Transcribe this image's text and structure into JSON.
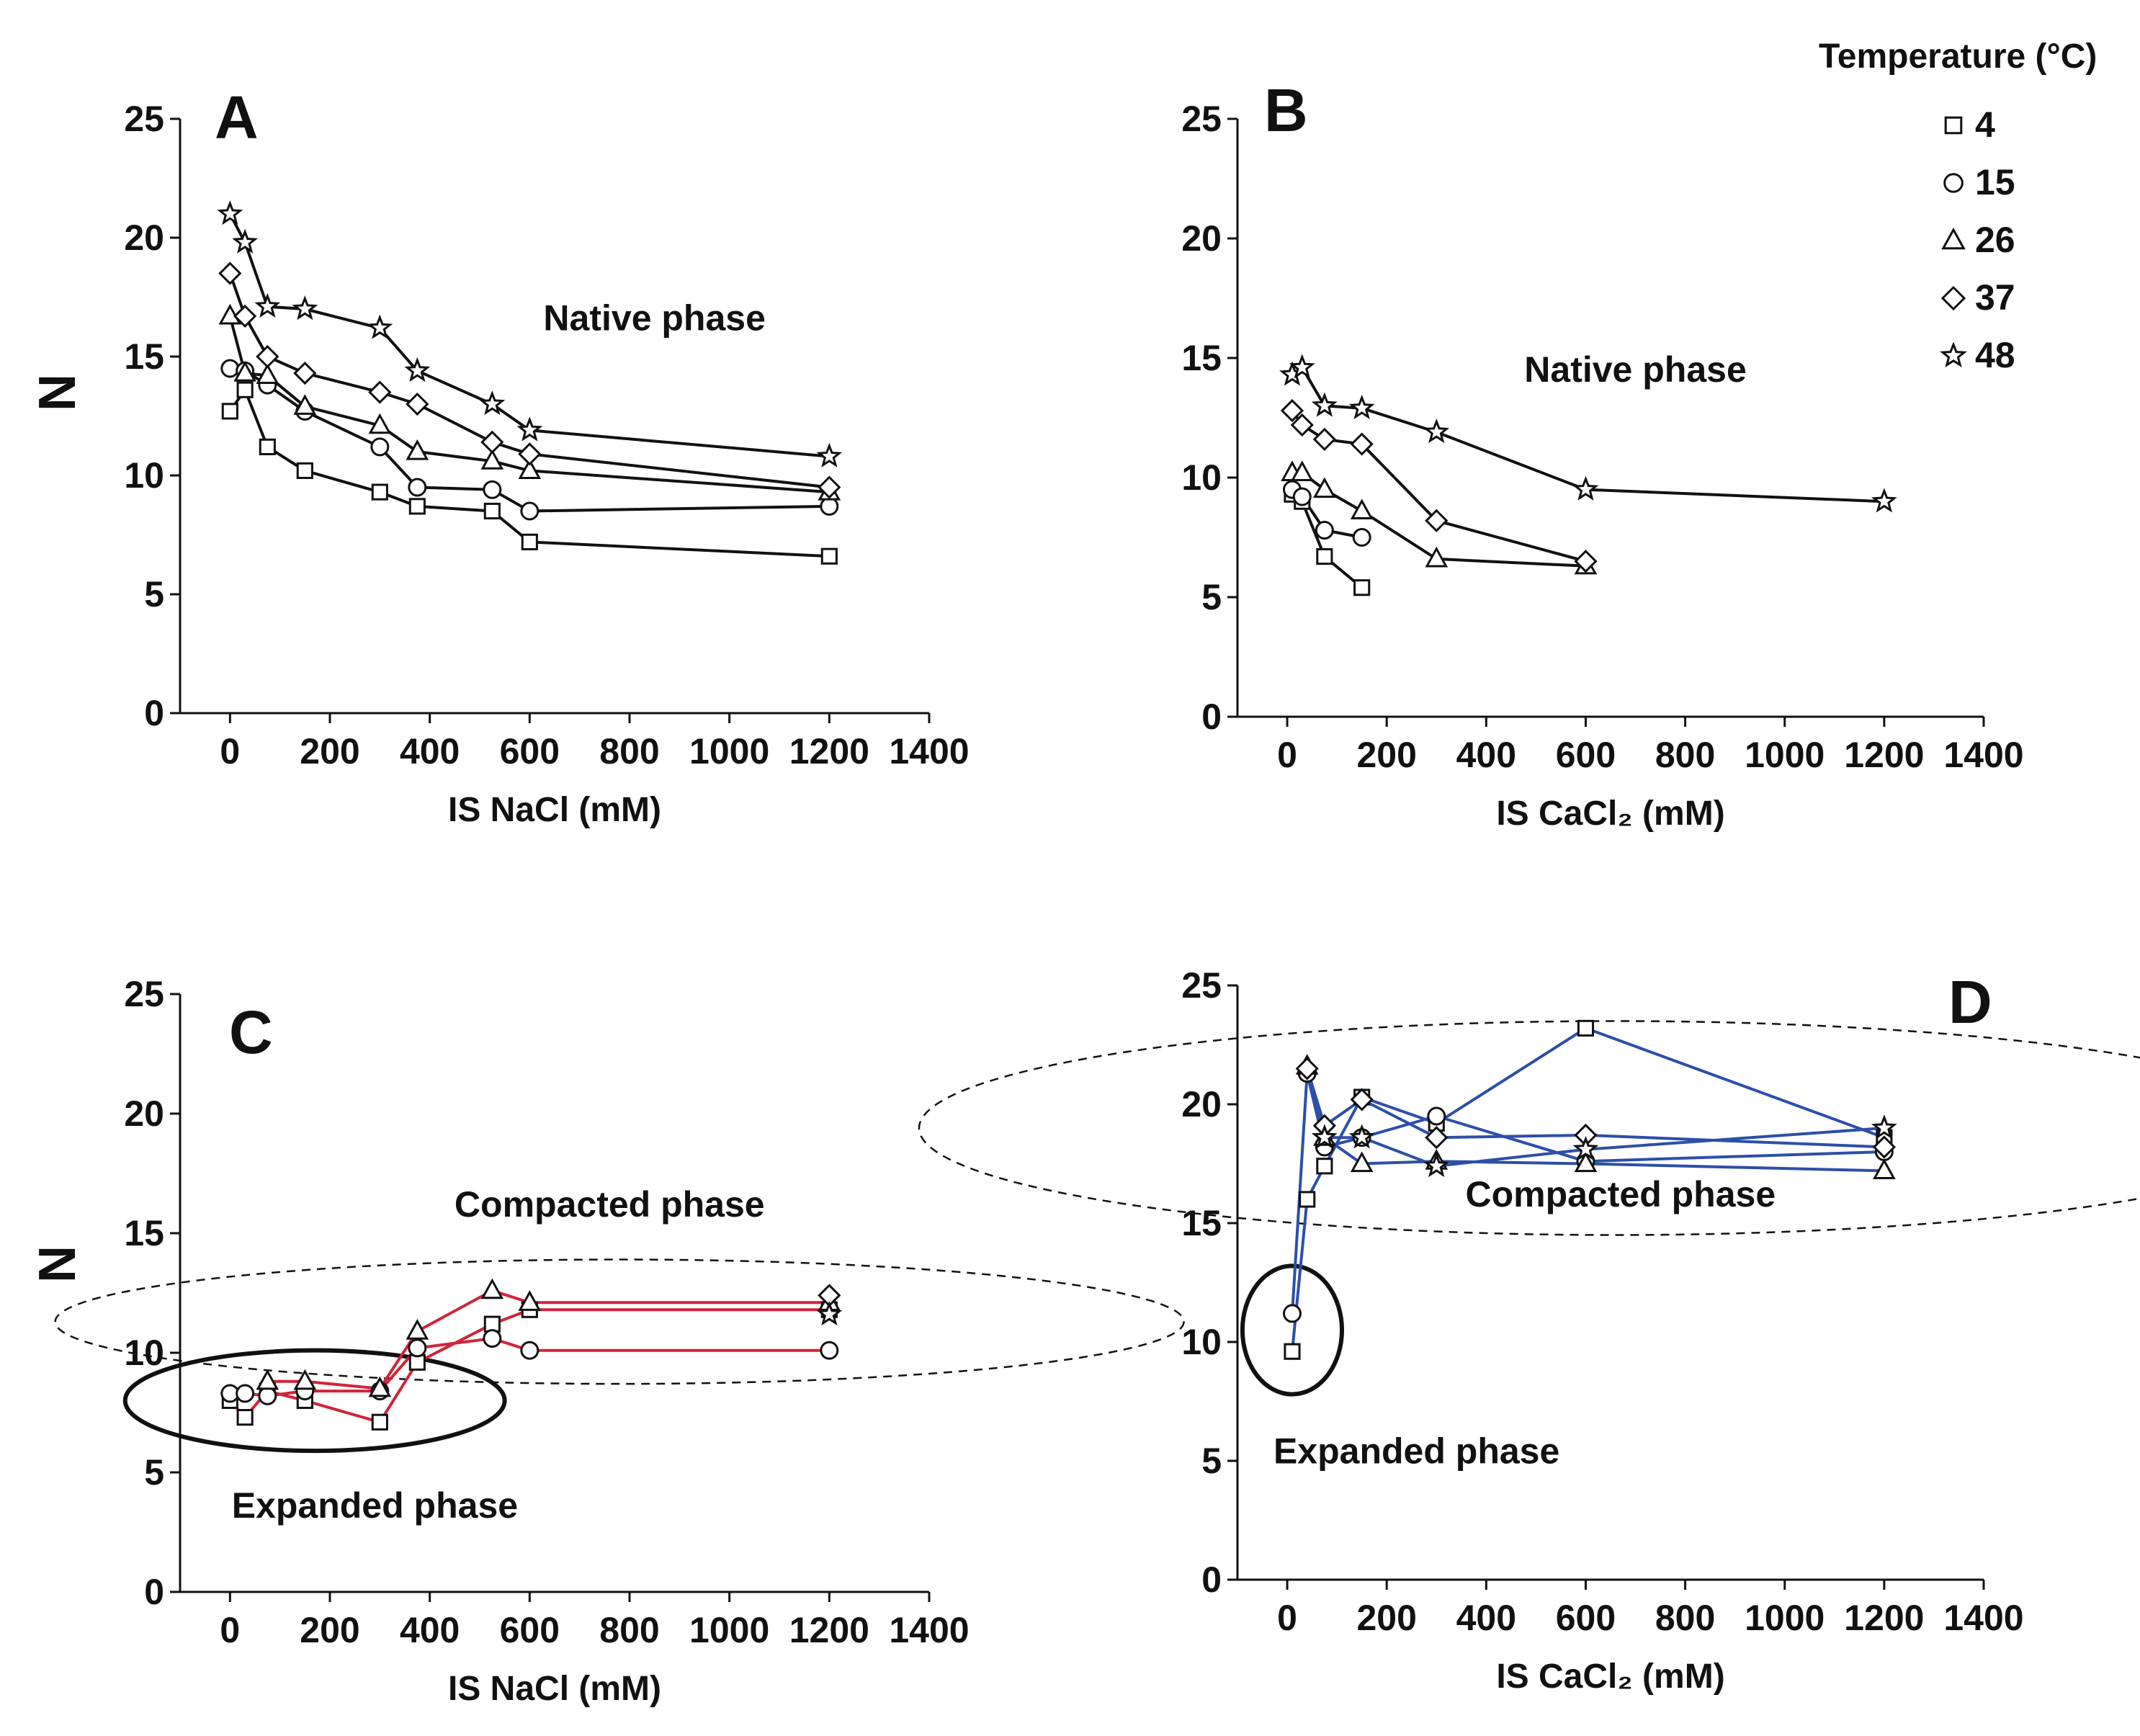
{
  "figure": {
    "legend": {
      "title": "Temperature (°C)",
      "entries": [
        {
          "label": "4",
          "marker": "square"
        },
        {
          "label": "15",
          "marker": "circle"
        },
        {
          "label": "26",
          "marker": "triangle"
        },
        {
          "label": "37",
          "marker": "diamond"
        },
        {
          "label": "48",
          "marker": "star"
        }
      ]
    },
    "colors": {
      "black": "#111111",
      "red": "#d0243a",
      "blue": "#2c4fa8"
    }
  },
  "chart_data": [
    {
      "panel": "A",
      "type": "line",
      "xlabel": "IS NaCl (mM)",
      "ylabel": "N",
      "xlim": [
        -100,
        1400
      ],
      "ylim": [
        0,
        25
      ],
      "xticks": [
        0,
        200,
        400,
        600,
        800,
        1000,
        1200,
        1400
      ],
      "yticks": [
        0,
        5,
        10,
        15,
        20,
        25
      ],
      "line_color": "#111111",
      "annotations": [
        {
          "text": "Native phase",
          "at": [
            850,
            16.1
          ]
        }
      ],
      "series": [
        {
          "name": "4",
          "marker": "square",
          "points": [
            [
              0,
              12.7
            ],
            [
              30,
              13.6
            ],
            [
              75,
              11.2
            ],
            [
              150,
              10.2
            ],
            [
              300,
              9.3
            ],
            [
              375,
              8.7
            ],
            [
              525,
              8.5
            ],
            [
              600,
              7.2
            ],
            [
              1200,
              6.6
            ]
          ]
        },
        {
          "name": "15",
          "marker": "circle",
          "points": [
            [
              0,
              14.5
            ],
            [
              30,
              14.4
            ],
            [
              75,
              13.8
            ],
            [
              150,
              12.7
            ],
            [
              300,
              11.2
            ],
            [
              375,
              9.5
            ],
            [
              525,
              9.4
            ],
            [
              600,
              8.5
            ],
            [
              1200,
              8.7
            ]
          ]
        },
        {
          "name": "26",
          "marker": "triangle",
          "points": [
            [
              0,
              16.7
            ],
            [
              30,
              14.3
            ],
            [
              75,
              14.2
            ],
            [
              150,
              12.9
            ],
            [
              300,
              12.1
            ],
            [
              375,
              11.0
            ],
            [
              525,
              10.6
            ],
            [
              600,
              10.2
            ],
            [
              1200,
              9.3
            ]
          ]
        },
        {
          "name": "37",
          "marker": "diamond",
          "points": [
            [
              0,
              18.5
            ],
            [
              30,
              16.7
            ],
            [
              75,
              15.0
            ],
            [
              150,
              14.3
            ],
            [
              300,
              13.5
            ],
            [
              375,
              13.0
            ],
            [
              525,
              11.4
            ],
            [
              600,
              10.9
            ],
            [
              1200,
              9.5
            ]
          ]
        },
        {
          "name": "48",
          "marker": "star",
          "points": [
            [
              0,
              21.0
            ],
            [
              30,
              19.8
            ],
            [
              75,
              17.1
            ],
            [
              150,
              17.0
            ],
            [
              300,
              16.2
            ],
            [
              375,
              14.4
            ],
            [
              525,
              13.0
            ],
            [
              600,
              11.9
            ],
            [
              1200,
              10.8
            ]
          ]
        }
      ]
    },
    {
      "panel": "B",
      "type": "line",
      "xlabel": "IS CaCl₂ (mM)",
      "ylabel": "",
      "xlim": [
        -100,
        1400
      ],
      "ylim": [
        0,
        25
      ],
      "xticks": [
        0,
        200,
        400,
        600,
        800,
        1000,
        1200,
        1400
      ],
      "yticks": [
        0,
        5,
        10,
        15,
        20,
        25
      ],
      "line_color": "#111111",
      "annotations": [
        {
          "text": "Native phase",
          "at": [
            700,
            14.0
          ]
        }
      ],
      "series": [
        {
          "name": "4",
          "marker": "square",
          "points": [
            [
              10,
              9.3
            ],
            [
              30,
              9.0
            ],
            [
              75,
              6.7
            ],
            [
              150,
              5.4
            ]
          ]
        },
        {
          "name": "15",
          "marker": "circle",
          "points": [
            [
              10,
              9.5
            ],
            [
              30,
              9.2
            ],
            [
              75,
              7.8
            ],
            [
              150,
              7.5
            ]
          ]
        },
        {
          "name": "26",
          "marker": "triangle",
          "points": [
            [
              10,
              10.2
            ],
            [
              30,
              10.2
            ],
            [
              75,
              9.5
            ],
            [
              150,
              8.6
            ],
            [
              300,
              6.6
            ],
            [
              600,
              6.3
            ]
          ]
        },
        {
          "name": "37",
          "marker": "diamond",
          "points": [
            [
              10,
              12.8
            ],
            [
              30,
              12.2
            ],
            [
              75,
              11.6
            ],
            [
              150,
              11.4
            ],
            [
              300,
              8.2
            ],
            [
              600,
              6.5
            ]
          ]
        },
        {
          "name": "48",
          "marker": "star",
          "points": [
            [
              10,
              14.3
            ],
            [
              30,
              14.6
            ],
            [
              75,
              13.0
            ],
            [
              150,
              12.9
            ],
            [
              300,
              11.9
            ],
            [
              600,
              9.5
            ],
            [
              1200,
              9.0
            ]
          ]
        }
      ]
    },
    {
      "panel": "C",
      "type": "line",
      "xlabel": "IS NaCl (mM)",
      "ylabel": "N",
      "xlim": [
        -100,
        1400
      ],
      "ylim": [
        0,
        25
      ],
      "xticks": [
        0,
        200,
        400,
        600,
        800,
        1000,
        1200,
        1400
      ],
      "yticks": [
        0,
        5,
        10,
        15,
        20,
        25
      ],
      "line_color": "#d0243a",
      "annotations": [
        {
          "text": "Compacted phase",
          "at": [
            760,
            15.7
          ]
        },
        {
          "text": "Expanded phase",
          "at": [
            290,
            3.1
          ]
        }
      ],
      "regions": [
        {
          "shape": "ellipse",
          "style": "solid",
          "center": [
            170,
            8.0
          ],
          "radius": [
            380,
            2.1
          ]
        },
        {
          "shape": "ellipse",
          "style": "dashed",
          "center": [
            780,
            11.3
          ],
          "radius": [
            1130,
            2.6
          ]
        }
      ],
      "series": [
        {
          "name": "4",
          "marker": "square",
          "points": [
            [
              0,
              8.0
            ],
            [
              30,
              7.3
            ],
            [
              75,
              8.4
            ],
            [
              150,
              8.0
            ],
            [
              300,
              7.1
            ],
            [
              375,
              9.6
            ],
            [
              525,
              11.2
            ],
            [
              600,
              11.8
            ],
            [
              1200,
              11.8
            ]
          ]
        },
        {
          "name": "15",
          "marker": "circle",
          "points": [
            [
              0,
              8.3
            ],
            [
              30,
              8.3
            ],
            [
              75,
              8.2
            ],
            [
              150,
              8.4
            ],
            [
              300,
              8.4
            ],
            [
              375,
              10.2
            ],
            [
              525,
              10.6
            ],
            [
              600,
              10.1
            ],
            [
              1200,
              10.1
            ]
          ]
        },
        {
          "name": "26",
          "marker": "triangle",
          "points": [
            [
              75,
              8.8
            ],
            [
              150,
              8.8
            ],
            [
              300,
              8.5
            ],
            [
              375,
              10.9
            ],
            [
              525,
              12.6
            ],
            [
              600,
              12.1
            ],
            [
              1200,
              12.1
            ]
          ]
        },
        {
          "name": "37",
          "marker": "diamond",
          "points": [
            [
              1200,
              12.4
            ]
          ]
        },
        {
          "name": "48",
          "marker": "star",
          "points": [
            [
              1200,
              11.6
            ]
          ]
        }
      ]
    },
    {
      "panel": "D",
      "type": "line",
      "xlabel": "IS CaCl₂ (mM)",
      "ylabel": "",
      "xlim": [
        -100,
        1400
      ],
      "ylim": [
        0,
        25
      ],
      "xticks": [
        0,
        200,
        400,
        600,
        800,
        1000,
        1200,
        1400
      ],
      "yticks": [
        0,
        5,
        10,
        15,
        20,
        25
      ],
      "line_color": "#2c4fa8",
      "annotations": [
        {
          "text": "Compacted phase",
          "at": [
            670,
            15.7
          ]
        },
        {
          "text": "Expanded phase",
          "at": [
            260,
            4.9
          ]
        }
      ],
      "regions": [
        {
          "shape": "ellipse",
          "style": "solid",
          "center": [
            10,
            10.5
          ],
          "radius": [
            100,
            2.7
          ]
        },
        {
          "shape": "ellipse",
          "style": "dashed",
          "center": [
            660,
            19.0
          ],
          "radius": [
            1400,
            4.5
          ]
        }
      ],
      "series": [
        {
          "name": "4",
          "marker": "square",
          "points": [
            [
              10,
              9.6
            ],
            [
              40,
              16.0
            ],
            [
              75,
              17.4
            ],
            [
              150,
              20.3
            ],
            [
              300,
              19.2
            ],
            [
              600,
              23.2
            ],
            [
              1200,
              18.6
            ]
          ]
        },
        {
          "name": "15",
          "marker": "circle",
          "points": [
            [
              10,
              11.2
            ],
            [
              40,
              21.3
            ],
            [
              75,
              18.2
            ],
            [
              150,
              18.6
            ],
            [
              300,
              19.5
            ],
            [
              600,
              17.6
            ],
            [
              1200,
              18.0
            ]
          ]
        },
        {
          "name": "26",
          "marker": "triangle",
          "points": [
            [
              40,
              21.6
            ],
            [
              75,
              18.6
            ],
            [
              150,
              17.5
            ],
            [
              300,
              17.6
            ],
            [
              600,
              17.5
            ],
            [
              1200,
              17.2
            ]
          ]
        },
        {
          "name": "37",
          "marker": "diamond",
          "points": [
            [
              40,
              21.5
            ],
            [
              75,
              19.1
            ],
            [
              150,
              20.2
            ],
            [
              300,
              18.6
            ],
            [
              600,
              18.7
            ],
            [
              1200,
              18.2
            ]
          ]
        },
        {
          "name": "48",
          "marker": "star",
          "points": [
            [
              75,
              18.6
            ],
            [
              150,
              18.6
            ],
            [
              300,
              17.4
            ],
            [
              600,
              18.1
            ],
            [
              1200,
              19.0
            ]
          ]
        }
      ]
    }
  ]
}
